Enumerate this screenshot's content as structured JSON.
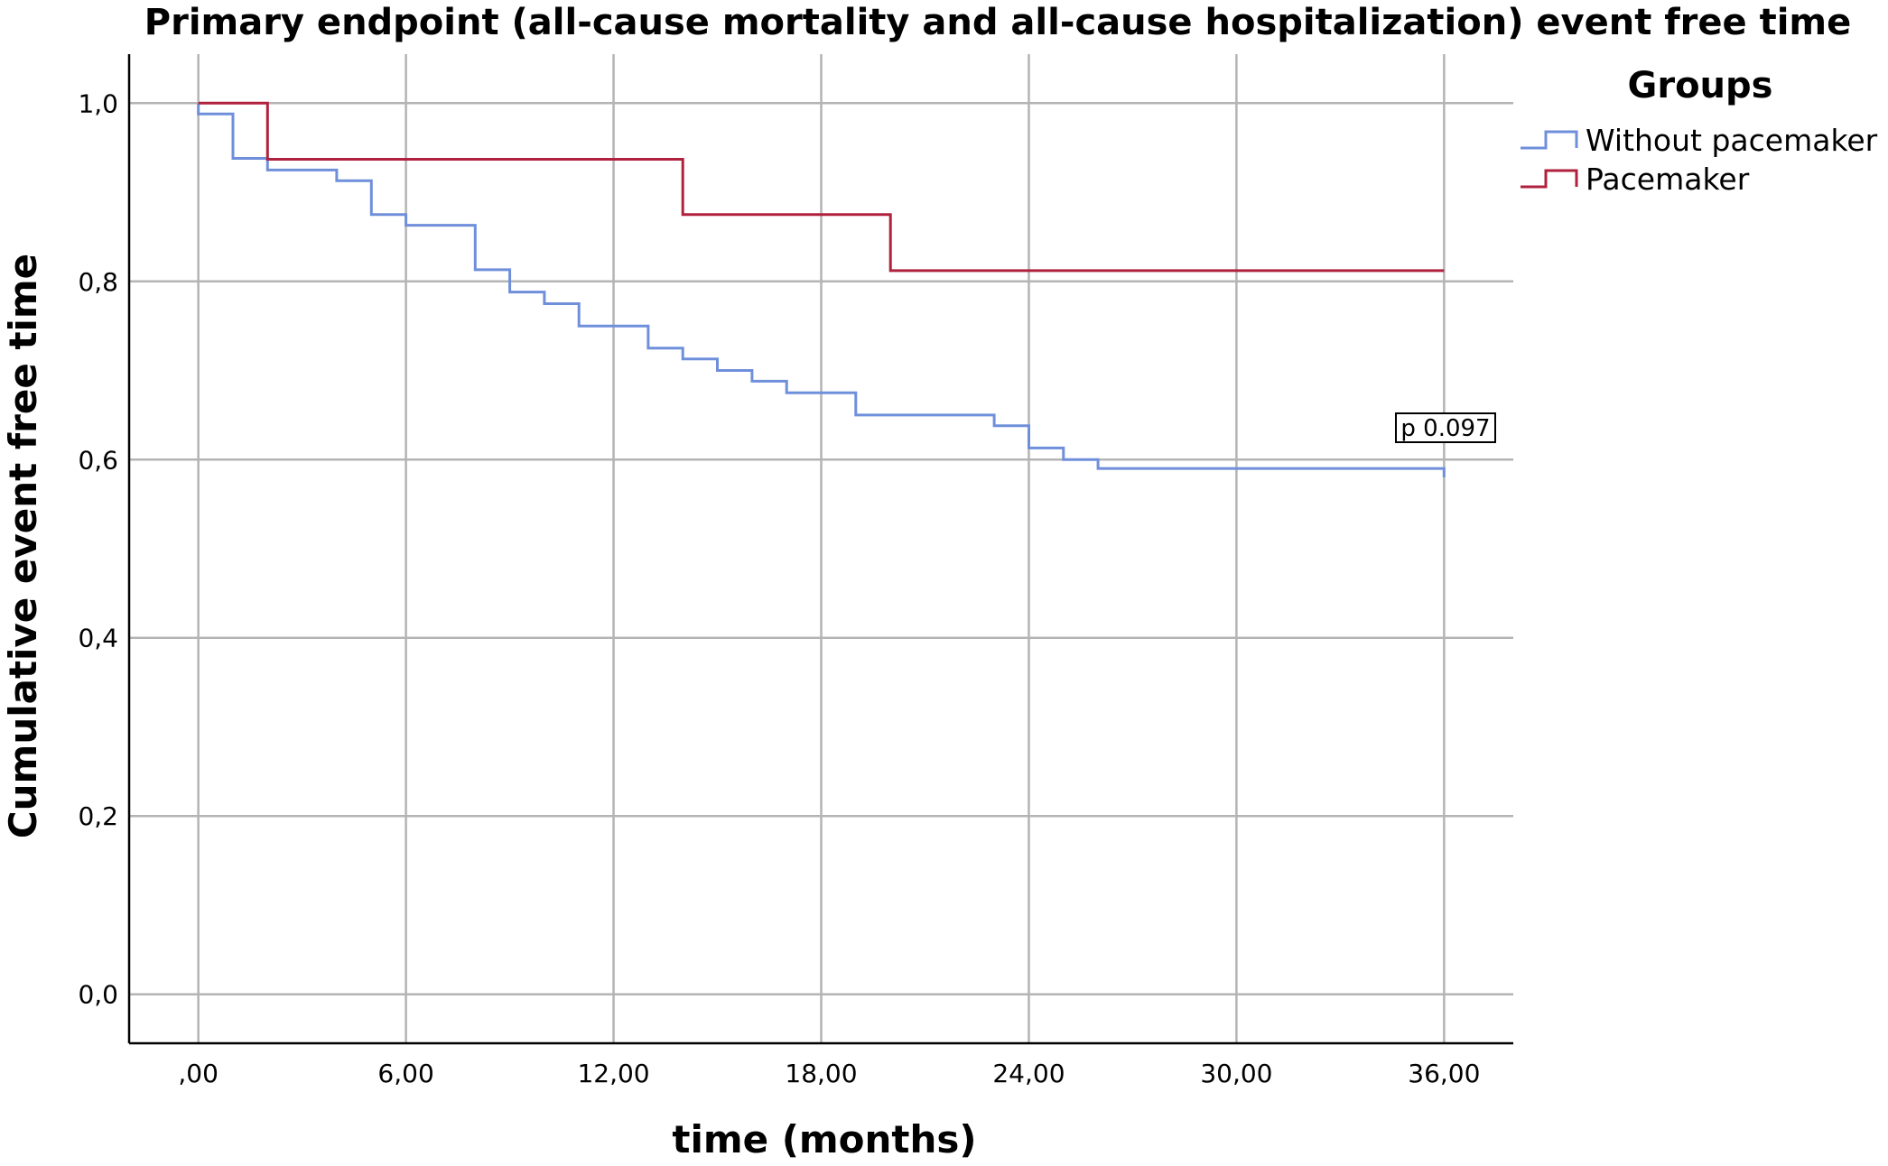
{
  "chart_data": {
    "type": "line",
    "title": "Primary endpoint (all-cause mortality and all-cause hospitalization) event free time",
    "xlabel": "time (months)",
    "ylabel": "Cumulative event free time",
    "xlim": [
      -2,
      38
    ],
    "ylim": [
      -0.055,
      1.055
    ],
    "x_ticks": [
      0,
      6,
      12,
      18,
      24,
      30,
      36
    ],
    "x_tick_labels": [
      ",00",
      "6,00",
      "12,00",
      "18,00",
      "24,00",
      "30,00",
      "36,00"
    ],
    "y_ticks": [
      0,
      0.2,
      0.4,
      0.6,
      0.8,
      1.0
    ],
    "y_tick_labels": [
      "0,0",
      "0,2",
      "0,4",
      "0,6",
      "0,8",
      "1,0"
    ],
    "grid": true,
    "step": true,
    "legend": {
      "title": "Groups",
      "position": "right"
    },
    "annotation": "p 0.097",
    "series": [
      {
        "name": "Without pacemaker",
        "color": "#6f8fdb",
        "points": [
          [
            0,
            1.0
          ],
          [
            0,
            0.988
          ],
          [
            1,
            0.988
          ],
          [
            1,
            0.938
          ],
          [
            2,
            0.938
          ],
          [
            2,
            0.925
          ],
          [
            4,
            0.925
          ],
          [
            4,
            0.913
          ],
          [
            5,
            0.913
          ],
          [
            5,
            0.875
          ],
          [
            6,
            0.875
          ],
          [
            6,
            0.863
          ],
          [
            8,
            0.863
          ],
          [
            8,
            0.813
          ],
          [
            9,
            0.813
          ],
          [
            9,
            0.788
          ],
          [
            10,
            0.788
          ],
          [
            10,
            0.775
          ],
          [
            11,
            0.775
          ],
          [
            11,
            0.75
          ],
          [
            13,
            0.75
          ],
          [
            13,
            0.725
          ],
          [
            14,
            0.725
          ],
          [
            14,
            0.713
          ],
          [
            15,
            0.713
          ],
          [
            15,
            0.7
          ],
          [
            16,
            0.7
          ],
          [
            16,
            0.688
          ],
          [
            17,
            0.688
          ],
          [
            17,
            0.675
          ],
          [
            19,
            0.675
          ],
          [
            19,
            0.65
          ],
          [
            23,
            0.65
          ],
          [
            23,
            0.638
          ],
          [
            24,
            0.638
          ],
          [
            24,
            0.613
          ],
          [
            25,
            0.613
          ],
          [
            25,
            0.6
          ],
          [
            26,
            0.6
          ],
          [
            26,
            0.59
          ],
          [
            36,
            0.59
          ],
          [
            36,
            0.58
          ]
        ]
      },
      {
        "name": "Pacemaker",
        "color": "#b0213e",
        "points": [
          [
            0,
            1.0
          ],
          [
            2,
            1.0
          ],
          [
            2,
            0.937
          ],
          [
            14,
            0.937
          ],
          [
            14,
            0.875
          ],
          [
            20,
            0.875
          ],
          [
            20,
            0.812
          ],
          [
            36,
            0.812
          ]
        ]
      }
    ]
  }
}
